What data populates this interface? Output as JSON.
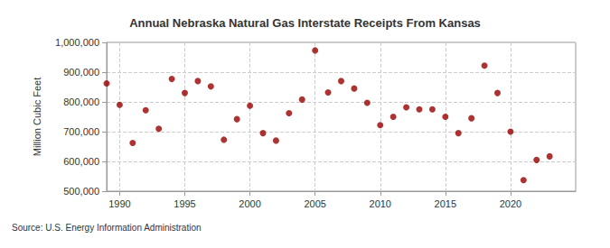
{
  "chart_data": {
    "type": "scatter",
    "title": "Annual Nebraska Natural Gas Interstate Receipts From Kansas",
    "y_label": "Million Cubic Feet",
    "source": "Source: U.S. Energy Information Administration",
    "x": [
      1989,
      1990,
      1991,
      1992,
      1993,
      1994,
      1995,
      1996,
      1997,
      1998,
      1999,
      2000,
      2001,
      2002,
      2003,
      2004,
      2005,
      2006,
      2007,
      2008,
      2009,
      2010,
      2011,
      2012,
      2013,
      2014,
      2015,
      2016,
      2017,
      2018,
      2019,
      2020,
      2021,
      2022,
      2023
    ],
    "values": [
      862000,
      790000,
      662000,
      772000,
      710000,
      877000,
      830000,
      870000,
      852000,
      673000,
      742000,
      787000,
      695000,
      670000,
      762000,
      808000,
      973000,
      832000,
      870000,
      845000,
      797000,
      722000,
      750000,
      782000,
      775000,
      775000,
      750000,
      695000,
      745000,
      922000,
      830000,
      700000,
      537000,
      605000,
      617000
    ],
    "color": "#990000",
    "marker": "circle",
    "xlim": [
      1989,
      2025
    ],
    "xticks": [
      1990,
      1995,
      2000,
      2005,
      2010,
      2015,
      2020
    ],
    "ylim": [
      500000,
      1000000
    ],
    "yticks": [
      {
        "value": 500000,
        "label": "500,000"
      },
      {
        "value": 600000,
        "label": "600,000"
      },
      {
        "value": 700000,
        "label": "700,000"
      },
      {
        "value": 800000,
        "label": "800,000"
      },
      {
        "value": 900000,
        "label": "900,000"
      },
      {
        "value": 1000000,
        "label": "1,000,000"
      }
    ],
    "grid": true
  }
}
